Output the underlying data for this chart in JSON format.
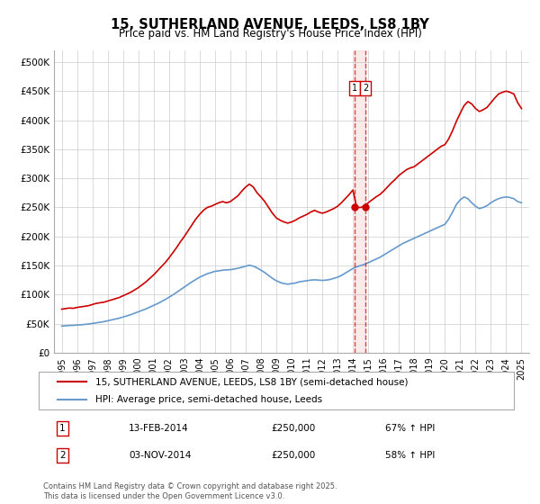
{
  "title": "15, SUTHERLAND AVENUE, LEEDS, LS8 1BY",
  "subtitle": "Price paid vs. HM Land Registry's House Price Index (HPI)",
  "red_label": "15, SUTHERLAND AVENUE, LEEDS, LS8 1BY (semi-detached house)",
  "blue_label": "HPI: Average price, semi-detached house, Leeds",
  "footnote": "Contains HM Land Registry data © Crown copyright and database right 2025.\nThis data is licensed under the Open Government Licence v3.0.",
  "sale1_date": "13-FEB-2014",
  "sale1_price": "£250,000",
  "sale1_hpi": "67% ↑ HPI",
  "sale2_date": "03-NOV-2014",
  "sale2_price": "£250,000",
  "sale2_hpi": "58% ↑ HPI",
  "red_color": "#cc0000",
  "blue_color": "#6699cc",
  "marker_color": "#cc0000",
  "vline_color": "#cc0000",
  "vline_date1": 2014.1,
  "vline_date2": 2014.84,
  "ylim": [
    0,
    520000
  ],
  "xlim_start": 1994.5,
  "xlim_end": 2025.5,
  "yticks": [
    0,
    50000,
    100000,
    150000,
    200000,
    250000,
    300000,
    350000,
    400000,
    450000,
    500000
  ],
  "ytick_labels": [
    "£0",
    "£50K",
    "£100K",
    "£150K",
    "£200K",
    "£250K",
    "£300K",
    "£350K",
    "£400K",
    "£450K",
    "£500K"
  ],
  "xticks": [
    1995,
    1996,
    1997,
    1998,
    1999,
    2000,
    2001,
    2002,
    2003,
    2004,
    2005,
    2006,
    2007,
    2008,
    2009,
    2010,
    2011,
    2012,
    2013,
    2014,
    2015,
    2016,
    2017,
    2018,
    2019,
    2020,
    2021,
    2022,
    2023,
    2024,
    2025
  ],
  "red_x": [
    1995.0,
    1995.25,
    1995.5,
    1995.75,
    1996.0,
    1996.25,
    1996.5,
    1996.75,
    1997.0,
    1997.25,
    1997.5,
    1997.75,
    1998.0,
    1998.25,
    1998.5,
    1998.75,
    1999.0,
    1999.25,
    1999.5,
    1999.75,
    2000.0,
    2000.25,
    2000.5,
    2000.75,
    2001.0,
    2001.25,
    2001.5,
    2001.75,
    2002.0,
    2002.25,
    2002.5,
    2002.75,
    2003.0,
    2003.25,
    2003.5,
    2003.75,
    2004.0,
    2004.25,
    2004.5,
    2004.75,
    2005.0,
    2005.25,
    2005.5,
    2005.75,
    2006.0,
    2006.25,
    2006.5,
    2006.75,
    2007.0,
    2007.25,
    2007.5,
    2007.75,
    2008.0,
    2008.25,
    2008.5,
    2008.75,
    2009.0,
    2009.25,
    2009.5,
    2009.75,
    2010.0,
    2010.25,
    2010.5,
    2010.75,
    2011.0,
    2011.25,
    2011.5,
    2011.75,
    2012.0,
    2012.25,
    2012.5,
    2012.75,
    2013.0,
    2013.25,
    2013.5,
    2013.75,
    2014.0,
    2014.25,
    2014.5,
    2014.75,
    2015.0,
    2015.25,
    2015.5,
    2015.75,
    2016.0,
    2016.25,
    2016.5,
    2016.75,
    2017.0,
    2017.25,
    2017.5,
    2017.75,
    2018.0,
    2018.25,
    2018.5,
    2018.75,
    2019.0,
    2019.25,
    2019.5,
    2019.75,
    2020.0,
    2020.25,
    2020.5,
    2020.75,
    2021.0,
    2021.25,
    2021.5,
    2021.75,
    2022.0,
    2022.25,
    2022.5,
    2022.75,
    2023.0,
    2023.25,
    2023.5,
    2023.75,
    2024.0,
    2024.25,
    2024.5,
    2024.75,
    2025.0
  ],
  "red_y": [
    75000,
    76000,
    77000,
    76500,
    78000,
    79000,
    80000,
    81000,
    83000,
    85000,
    86000,
    87000,
    89000,
    91000,
    93000,
    95000,
    98000,
    101000,
    104000,
    108000,
    112000,
    117000,
    122000,
    128000,
    134000,
    141000,
    148000,
    155000,
    163000,
    172000,
    181000,
    191000,
    200000,
    210000,
    220000,
    230000,
    238000,
    245000,
    250000,
    252000,
    255000,
    258000,
    260000,
    258000,
    260000,
    265000,
    270000,
    278000,
    285000,
    290000,
    285000,
    275000,
    268000,
    260000,
    250000,
    240000,
    232000,
    228000,
    225000,
    223000,
    225000,
    228000,
    232000,
    235000,
    238000,
    242000,
    245000,
    242000,
    240000,
    242000,
    245000,
    248000,
    252000,
    258000,
    265000,
    272000,
    280000,
    250000,
    250000,
    252000,
    258000,
    263000,
    268000,
    272000,
    278000,
    285000,
    292000,
    298000,
    305000,
    310000,
    315000,
    318000,
    320000,
    325000,
    330000,
    335000,
    340000,
    345000,
    350000,
    355000,
    358000,
    368000,
    382000,
    398000,
    412000,
    425000,
    432000,
    428000,
    420000,
    415000,
    418000,
    422000,
    430000,
    438000,
    445000,
    448000,
    450000,
    448000,
    445000,
    430000,
    420000
  ],
  "blue_x": [
    1995.0,
    1995.25,
    1995.5,
    1995.75,
    1996.0,
    1996.25,
    1996.5,
    1996.75,
    1997.0,
    1997.25,
    1997.5,
    1997.75,
    1998.0,
    1998.25,
    1998.5,
    1998.75,
    1999.0,
    1999.25,
    1999.5,
    1999.75,
    2000.0,
    2000.25,
    2000.5,
    2000.75,
    2001.0,
    2001.25,
    2001.5,
    2001.75,
    2002.0,
    2002.25,
    2002.5,
    2002.75,
    2003.0,
    2003.25,
    2003.5,
    2003.75,
    2004.0,
    2004.25,
    2004.5,
    2004.75,
    2005.0,
    2005.25,
    2005.5,
    2005.75,
    2006.0,
    2006.25,
    2006.5,
    2006.75,
    2007.0,
    2007.25,
    2007.5,
    2007.75,
    2008.0,
    2008.25,
    2008.5,
    2008.75,
    2009.0,
    2009.25,
    2009.5,
    2009.75,
    2010.0,
    2010.25,
    2010.5,
    2010.75,
    2011.0,
    2011.25,
    2011.5,
    2011.75,
    2012.0,
    2012.25,
    2012.5,
    2012.75,
    2013.0,
    2013.25,
    2013.5,
    2013.75,
    2014.0,
    2014.25,
    2014.5,
    2014.75,
    2015.0,
    2015.25,
    2015.5,
    2015.75,
    2016.0,
    2016.25,
    2016.5,
    2016.75,
    2017.0,
    2017.25,
    2017.5,
    2017.75,
    2018.0,
    2018.25,
    2018.5,
    2018.75,
    2019.0,
    2019.25,
    2019.5,
    2019.75,
    2020.0,
    2020.25,
    2020.5,
    2020.75,
    2021.0,
    2021.25,
    2021.5,
    2021.75,
    2022.0,
    2022.25,
    2022.5,
    2022.75,
    2023.0,
    2023.25,
    2023.5,
    2023.75,
    2024.0,
    2024.25,
    2024.5,
    2024.75,
    2025.0
  ],
  "blue_y": [
    46000,
    46500,
    47000,
    47200,
    47800,
    48200,
    48800,
    49500,
    50500,
    51500,
    52500,
    53500,
    55000,
    56500,
    58000,
    59500,
    61500,
    63500,
    65500,
    68000,
    70500,
    73000,
    75500,
    78500,
    81500,
    84500,
    88000,
    91500,
    95500,
    99500,
    104000,
    108500,
    113000,
    117500,
    122000,
    126000,
    130000,
    133000,
    136000,
    138000,
    140000,
    141000,
    142000,
    142500,
    143000,
    144000,
    145500,
    147000,
    149000,
    150500,
    149000,
    146000,
    142000,
    138000,
    133000,
    128000,
    124000,
    121000,
    119000,
    118000,
    119000,
    120000,
    122000,
    123000,
    124000,
    125000,
    125500,
    125000,
    124500,
    125000,
    126000,
    128000,
    130000,
    133000,
    137000,
    141000,
    145000,
    148000,
    150000,
    152000,
    155000,
    158000,
    161000,
    164000,
    168000,
    172000,
    176000,
    180000,
    184000,
    188000,
    191000,
    194000,
    197000,
    200000,
    203000,
    206000,
    209000,
    212000,
    215000,
    218000,
    221000,
    230000,
    242000,
    255000,
    263000,
    268000,
    265000,
    258000,
    252000,
    248000,
    250000,
    253000,
    258000,
    262000,
    265000,
    267000,
    268000,
    267000,
    265000,
    260000,
    258000
  ]
}
